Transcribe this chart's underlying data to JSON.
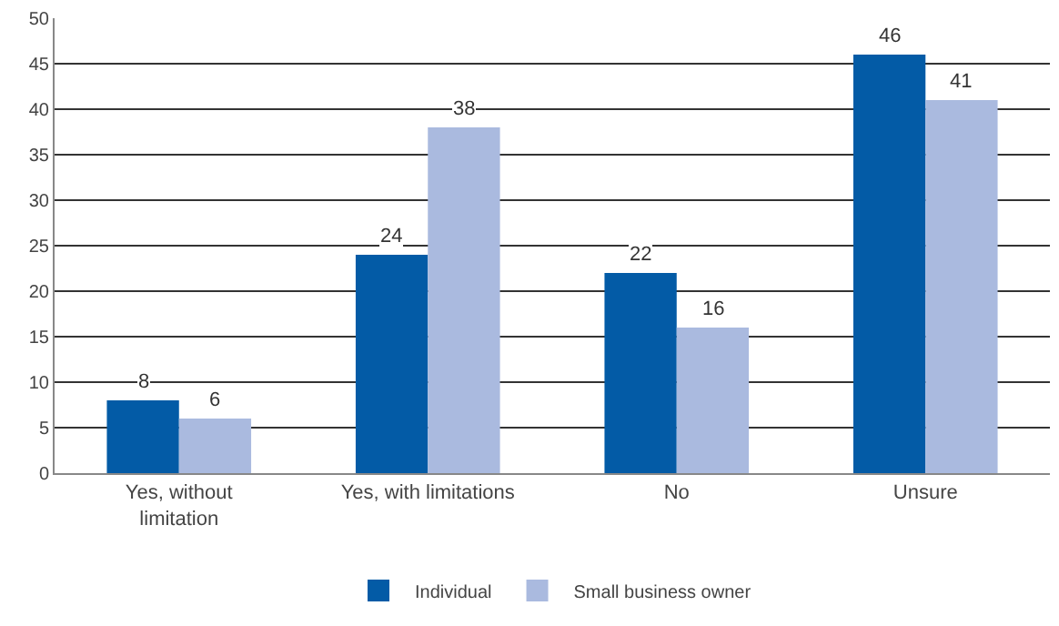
{
  "chart_data": {
    "type": "bar",
    "categories": [
      "Yes, without\nlimitation",
      "Yes, with limitations",
      "No",
      "Unsure"
    ],
    "series": [
      {
        "name": "Individual",
        "color": "#035ba6",
        "values": [
          8,
          24,
          22,
          46
        ]
      },
      {
        "name": "Small business owner",
        "color": "#aabadf",
        "values": [
          6,
          38,
          16,
          41
        ]
      }
    ],
    "ylim": [
      0,
      50
    ],
    "yticks": [
      0,
      5,
      10,
      15,
      20,
      25,
      30,
      35,
      40,
      45,
      50
    ],
    "grid": "y",
    "legend": "bottom",
    "data_labels": true
  }
}
